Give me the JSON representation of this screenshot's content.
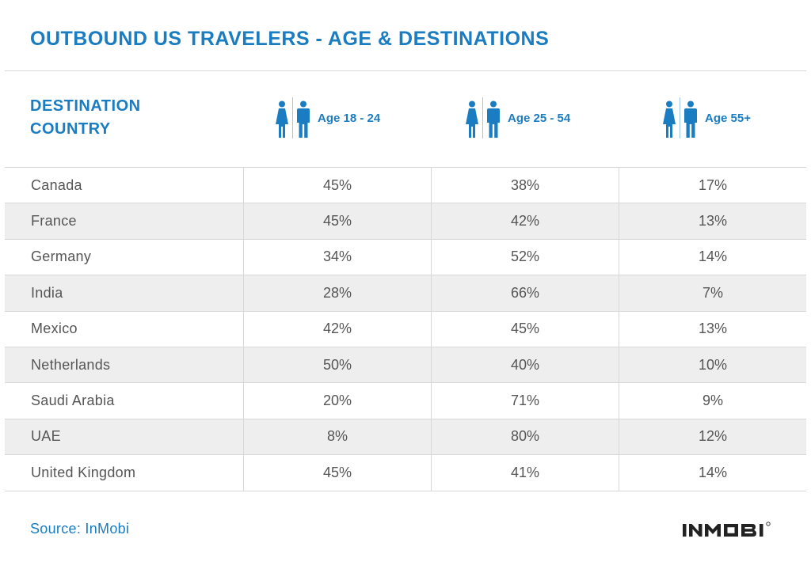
{
  "chart_data": {
    "type": "table",
    "title": "OUTBOUND US TRAVELERS - AGE & DESTINATIONS",
    "row_header": [
      "DESTINATION",
      "COUNTRY"
    ],
    "columns": [
      {
        "label": "Age 18 - 24",
        "icon": "male-female-icon"
      },
      {
        "label": "Age 25 - 54",
        "icon": "male-female-icon"
      },
      {
        "label": "Age 55+",
        "icon": "male-female-icon"
      }
    ],
    "rows": [
      {
        "country": "Canada",
        "values": [
          "45%",
          "38%",
          "17%"
        ]
      },
      {
        "country": "France",
        "values": [
          "45%",
          "42%",
          "13%"
        ]
      },
      {
        "country": "Germany",
        "values": [
          "34%",
          "52%",
          "14%"
        ]
      },
      {
        "country": "India",
        "values": [
          "28%",
          "66%",
          "7%"
        ]
      },
      {
        "country": "Mexico",
        "values": [
          "42%",
          "45%",
          "13%"
        ]
      },
      {
        "country": "Netherlands",
        "values": [
          "50%",
          "40%",
          "10%"
        ]
      },
      {
        "country": "Saudi Arabia",
        "values": [
          "20%",
          "71%",
          "9%"
        ]
      },
      {
        "country": "UAE",
        "values": [
          "8%",
          "80%",
          "12%"
        ]
      },
      {
        "country": "United Kingdom",
        "values": [
          "45%",
          "41%",
          "14%"
        ]
      }
    ]
  },
  "footer": {
    "source": "Source: InMobi",
    "logo_text": "INMOBI"
  },
  "colors": {
    "accent": "#1a7cc1",
    "text": "#555555",
    "row_alt": "#eeeeee",
    "rule": "#d8d8d8",
    "logo": "#222222"
  }
}
